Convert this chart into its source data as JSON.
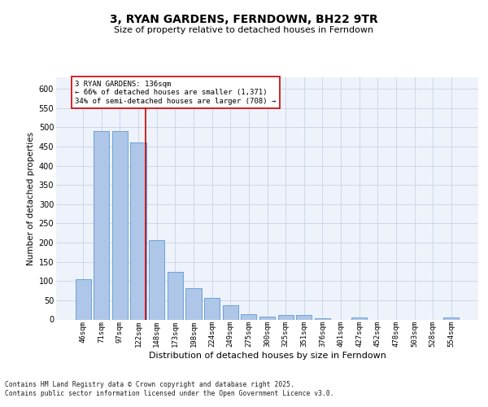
{
  "title": "3, RYAN GARDENS, FERNDOWN, BH22 9TR",
  "subtitle": "Size of property relative to detached houses in Ferndown",
  "xlabel": "Distribution of detached houses by size in Ferndown",
  "ylabel": "Number of detached properties",
  "categories": [
    "46sqm",
    "71sqm",
    "97sqm",
    "122sqm",
    "148sqm",
    "173sqm",
    "198sqm",
    "224sqm",
    "249sqm",
    "275sqm",
    "300sqm",
    "325sqm",
    "351sqm",
    "376sqm",
    "401sqm",
    "427sqm",
    "452sqm",
    "478sqm",
    "503sqm",
    "528sqm",
    "554sqm"
  ],
  "values": [
    105,
    490,
    490,
    460,
    207,
    123,
    81,
    57,
    38,
    13,
    8,
    11,
    11,
    4,
    0,
    5,
    0,
    0,
    0,
    0,
    6
  ],
  "bar_color": "#aec6e8",
  "bar_edge_color": "#5b9bd5",
  "grid_color": "#c8d4e8",
  "bg_color": "#eef2fa",
  "vline_color": "#cc0000",
  "annotation_text": "3 RYAN GARDENS: 136sqm\n← 66% of detached houses are smaller (1,371)\n34% of semi-detached houses are larger (708) →",
  "annotation_box_color": "#ffffff",
  "annotation_box_edge": "#cc0000",
  "footer": "Contains HM Land Registry data © Crown copyright and database right 2025.\nContains public sector information licensed under the Open Government Licence v3.0.",
  "ylim": [
    0,
    630
  ],
  "yticks": [
    0,
    50,
    100,
    150,
    200,
    250,
    300,
    350,
    400,
    450,
    500,
    550,
    600
  ]
}
